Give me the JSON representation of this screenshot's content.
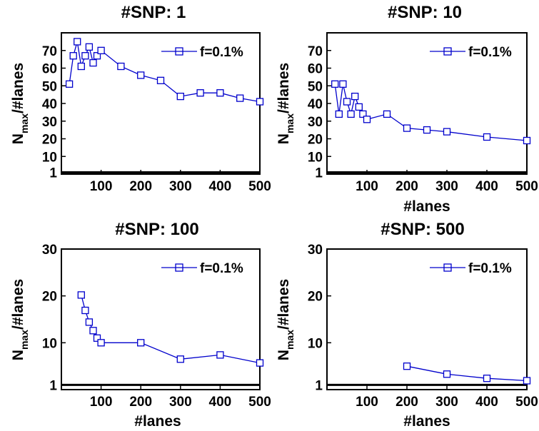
{
  "chart_data": [
    {
      "type": "line",
      "title": "#SNP: 1",
      "xlabel": "",
      "ylabel_main": "N",
      "ylabel_sub": "max",
      "ylabel_rest": "/#lanes",
      "xlim": [
        0,
        500
      ],
      "ylim": [
        0,
        80
      ],
      "xticks": [
        "100",
        "200",
        "300",
        "400",
        "500"
      ],
      "yticks": [
        "1",
        "10",
        "20",
        "30",
        "40",
        "50",
        "60",
        "70"
      ],
      "legend_position": "top-right",
      "baseline": 1,
      "series": [
        {
          "name": "f=0.1%",
          "color": "#0000cc",
          "x": [
            20,
            30,
            40,
            50,
            60,
            70,
            80,
            90,
            100,
            150,
            200,
            250,
            300,
            350,
            400,
            450,
            500
          ],
          "y": [
            51,
            67,
            75,
            61,
            67,
            72,
            63,
            67,
            70,
            61,
            56,
            53,
            44,
            46,
            46,
            43,
            41
          ]
        }
      ]
    },
    {
      "type": "line",
      "title": "#SNP: 10",
      "xlabel": "#lanes",
      "ylabel_main": "N",
      "ylabel_sub": "max",
      "ylabel_rest": "/#lanes",
      "xlim": [
        0,
        500
      ],
      "ylim": [
        0,
        80
      ],
      "xticks": [
        "100",
        "200",
        "300",
        "400",
        "500"
      ],
      "yticks": [
        "1",
        "10",
        "20",
        "30",
        "40",
        "50",
        "60",
        "70"
      ],
      "legend_position": "top-right",
      "baseline": 1,
      "series": [
        {
          "name": "f=0.1%",
          "color": "#0000cc",
          "x": [
            20,
            30,
            40,
            50,
            60,
            70,
            80,
            90,
            100,
            150,
            200,
            250,
            300,
            400,
            500
          ],
          "y": [
            51,
            34,
            51,
            41,
            34,
            44,
            38,
            34,
            31,
            34,
            26,
            25,
            24,
            21,
            19
          ]
        }
      ]
    },
    {
      "type": "line",
      "title": "#SNP: 100",
      "xlabel": "#lanes",
      "ylabel_main": "N",
      "ylabel_sub": "max",
      "ylabel_rest": "/#lanes",
      "xlim": [
        0,
        500
      ],
      "ylim": [
        0,
        30
      ],
      "xticks": [
        "100",
        "200",
        "300",
        "400",
        "500"
      ],
      "yticks": [
        "1",
        "10",
        "20",
        "30"
      ],
      "legend_position": "top-right",
      "baseline": 1,
      "series": [
        {
          "name": "f=0.1%",
          "color": "#0000cc",
          "x": [
            50,
            60,
            70,
            80,
            90,
            100,
            200,
            300,
            400,
            500
          ],
          "y": [
            20.2,
            16.9,
            14.4,
            12.6,
            11,
            10,
            10,
            6.5,
            7.4,
            5.7
          ]
        }
      ]
    },
    {
      "type": "line",
      "title": "#SNP: 500",
      "xlabel": "#lanes",
      "ylabel_main": "N",
      "ylabel_sub": "max",
      "ylabel_rest": "/#lanes",
      "xlim": [
        0,
        500
      ],
      "ylim": [
        0,
        30
      ],
      "xticks": [
        "100",
        "200",
        "300",
        "400",
        "500"
      ],
      "yticks": [
        "1",
        "10",
        "20",
        "30"
      ],
      "legend_position": "top-right",
      "baseline": 1,
      "series": [
        {
          "name": "f=0.1%",
          "color": "#0000cc",
          "x": [
            200,
            300,
            400,
            500
          ],
          "y": [
            5,
            3.3,
            2.4,
            1.9
          ]
        }
      ]
    }
  ]
}
